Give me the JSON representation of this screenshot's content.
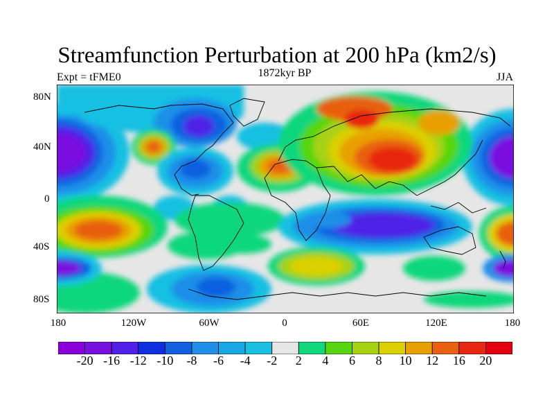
{
  "title": "Streamfunction Perturbation at 200 hPa (km2/s)",
  "left_string": "Expt = tFME0",
  "center_string": "1872kyr BP",
  "right_string": "JJA",
  "lat_labels": [
    "80N",
    "40N",
    "0",
    "40S",
    "80S"
  ],
  "lon_labels": [
    "180",
    "120W",
    "60W",
    "0",
    "60E",
    "120E",
    "180"
  ],
  "colorbar": {
    "labels": [
      "-20",
      "-16",
      "-12",
      "-10",
      "-8",
      "-6",
      "-4",
      "-2",
      "2",
      "4",
      "6",
      "8",
      "10",
      "12",
      "16",
      "20"
    ],
    "colors": [
      "#8a00d8",
      "#7a10e0",
      "#5020e8",
      "#1030e0",
      "#1060e0",
      "#1f8fe8",
      "#18a8e6",
      "#19c0e2",
      "#e6e6e6",
      "#10d77c",
      "#55d610",
      "#a6d214",
      "#dcd000",
      "#e8a000",
      "#e86010",
      "#e82810",
      "#e40010"
    ]
  },
  "features": {
    "background": "#e6e6e6",
    "coast": "#000000"
  }
}
